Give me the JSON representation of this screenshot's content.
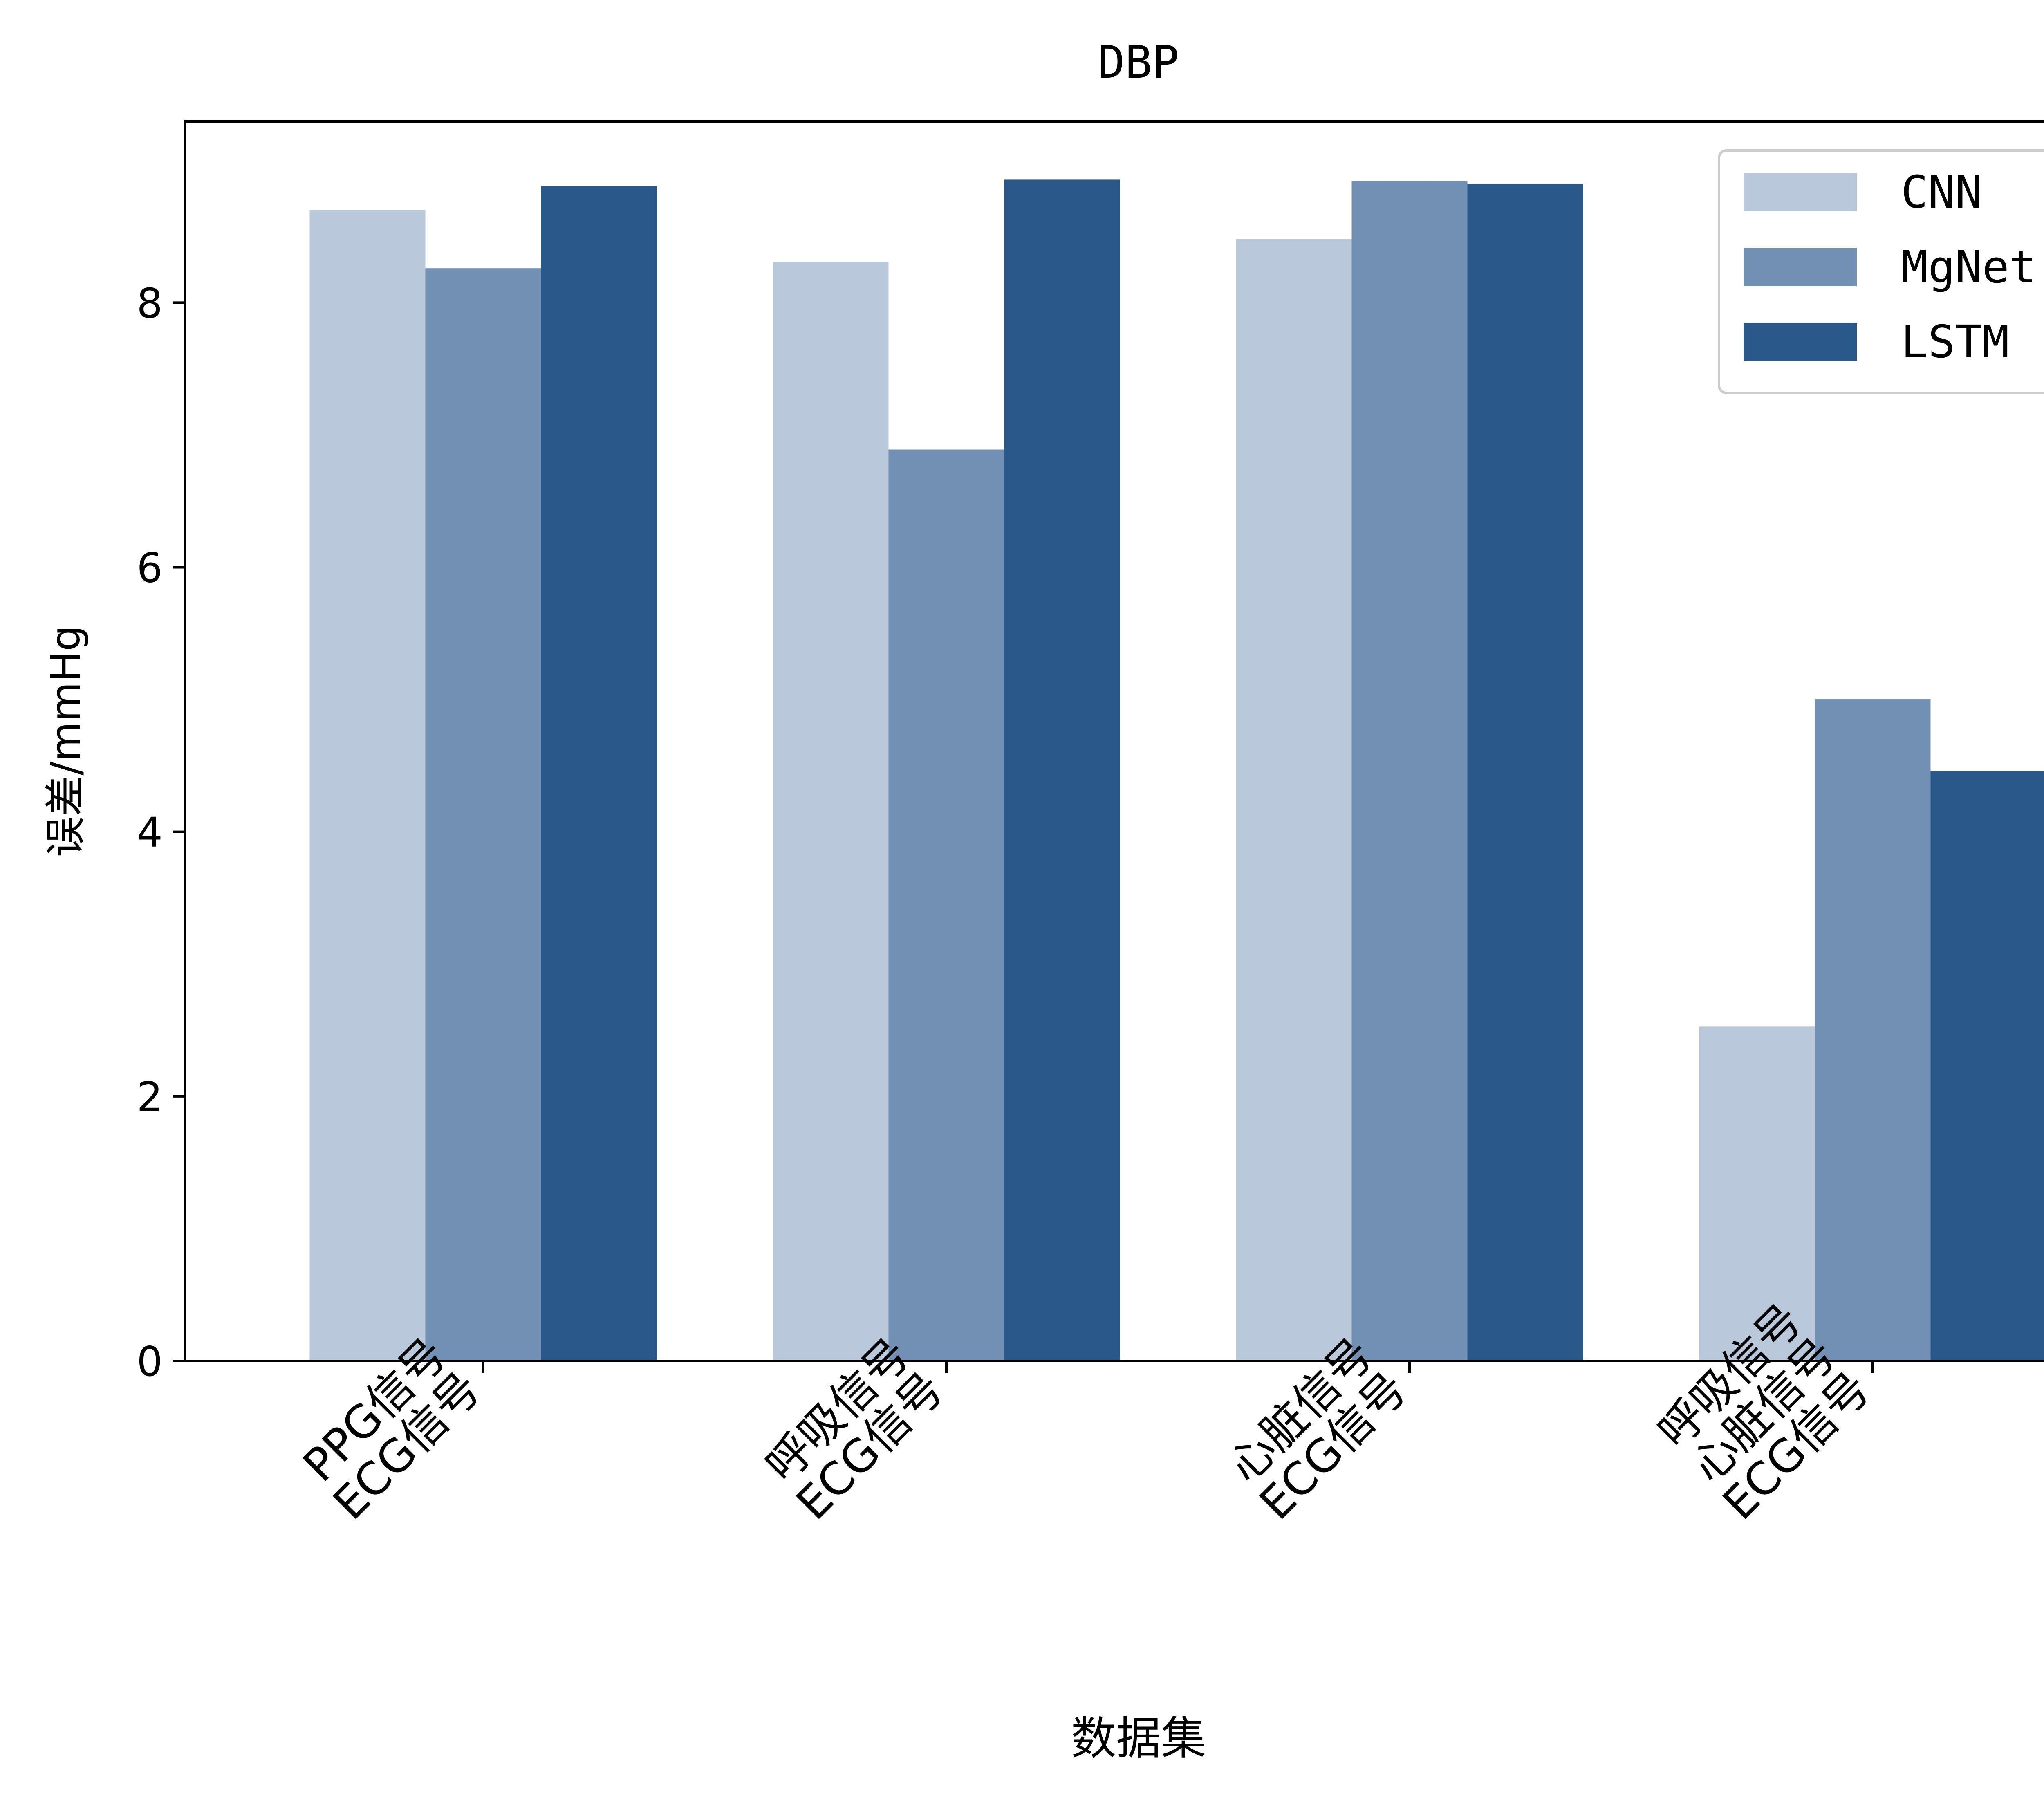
{
  "chart_data": {
    "type": "bar",
    "title": "DBP",
    "xlabel": "数据集",
    "ylabel": "误差/mmHg",
    "categories": [
      [
        "PPG信号",
        "ECG信号"
      ],
      [
        "呼吸信号",
        "ECG信号"
      ],
      [
        "心脏信号",
        "ECG信号"
      ],
      [
        "呼吸信号",
        "心脏信号",
        "ECG信号"
      ]
    ],
    "series": [
      {
        "name": "CNN",
        "color": "#b9c8da",
        "values": [
          8.7,
          8.31,
          8.48,
          2.53
        ]
      },
      {
        "name": "MgNet",
        "color": "#7190b3",
        "values": [
          8.26,
          6.89,
          8.92,
          5.0
        ]
      },
      {
        "name": "LSTM",
        "color": "#2b588b",
        "values": [
          8.88,
          8.93,
          8.9,
          4.46
        ]
      }
    ],
    "ylim": [
      0,
      9.37
    ],
    "yticks": [
      0,
      2,
      4,
      6,
      8
    ],
    "grid": false,
    "legend_position": "top-right"
  }
}
